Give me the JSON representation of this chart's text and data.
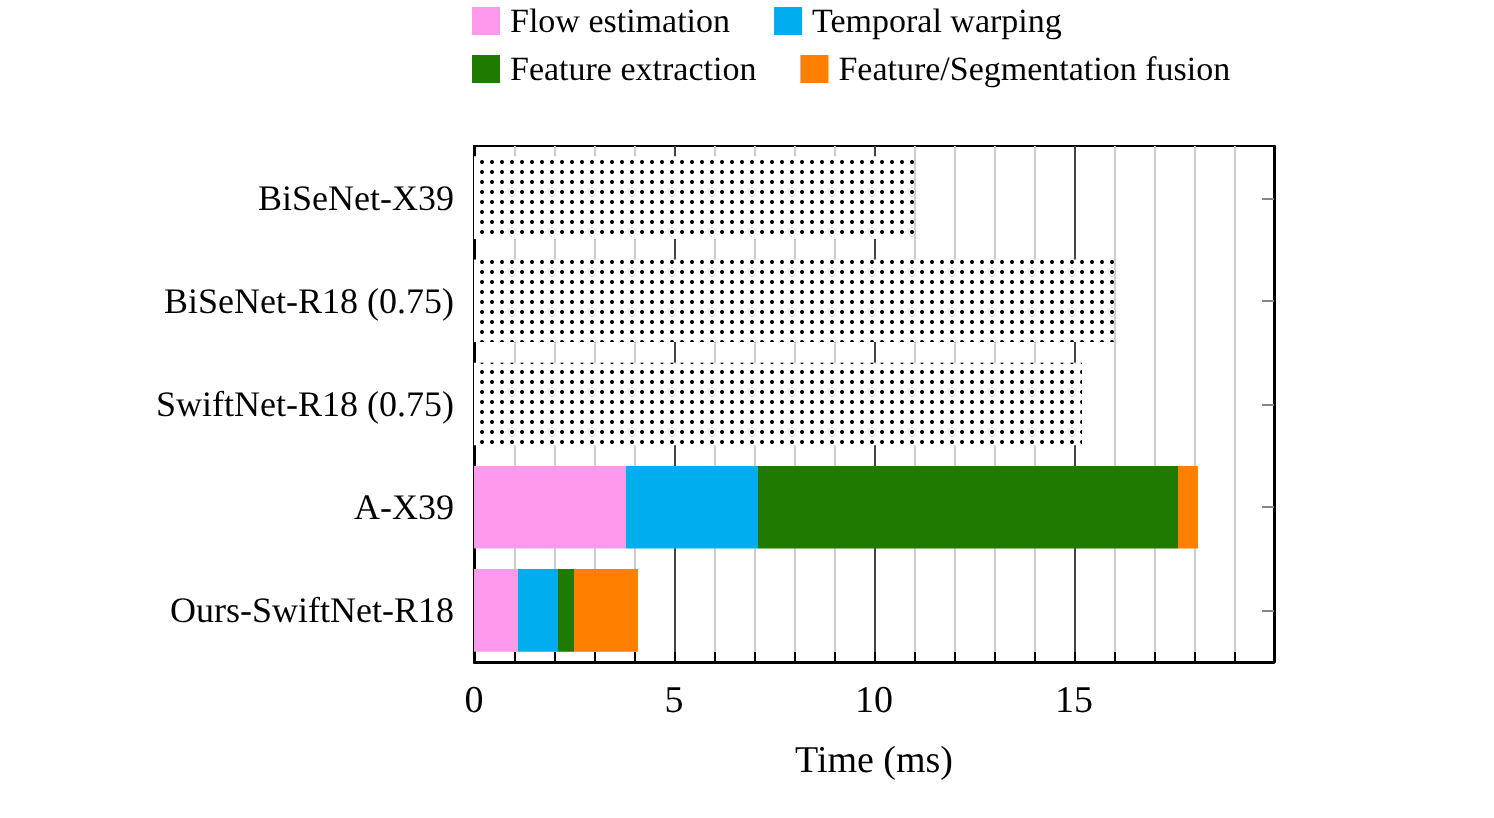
{
  "chart_data": {
    "type": "bar",
    "orientation": "horizontal",
    "stacked": true,
    "xlabel": "Time (ms)",
    "categories": [
      "BiSeNet-X39",
      "BiSeNet-R18 (0.75)",
      "SwiftNet-R18 (0.75)",
      "A-X39",
      "Ours-SwiftNet-R18"
    ],
    "series": [
      {
        "color": "#ffffff",
        "values": [
          11.0,
          16.0,
          15.2,
          null,
          null
        ]
      },
      {
        "name": "Flow estimation",
        "color": "#ff99ee",
        "values": [
          null,
          null,
          null,
          3.8,
          1.1
        ]
      },
      {
        "name": "Temporal warping",
        "color": "#00adef",
        "values": [
          null,
          null,
          null,
          3.3,
          1.0
        ]
      },
      {
        "name": "Feature extraction",
        "color": "#1f7a00",
        "values": [
          null,
          null,
          null,
          10.5,
          0.4
        ]
      },
      {
        "name": "Feature/Segmentation fusion",
        "color": "#ff8000",
        "values": [
          null,
          null,
          null,
          0.5,
          1.6
        ]
      }
    ],
    "xlim": [
      0,
      20
    ],
    "xticks": [
      0,
      {
        "value": 1,
        "label": null
      },
      {
        "value": 2,
        "label": null
      },
      {
        "value": 3,
        "label": null
      },
      {
        "value": 4,
        "label": null
      },
      5,
      {
        "value": 6,
        "label": null
      },
      {
        "value": 7,
        "label": null
      },
      {
        "value": 8,
        "label": null
      },
      {
        "value": 9,
        "label": null
      },
      10,
      {
        "value": 11,
        "label": null
      },
      {
        "value": 12,
        "label": null
      },
      {
        "value": 13,
        "label": null
      },
      {
        "value": 14,
        "label": null
      },
      15,
      {
        "value": 16,
        "label": null
      },
      {
        "value": 17,
        "label": null
      },
      {
        "value": 18,
        "label": null
      },
      {
        "value": 19,
        "label": null
      }
    ],
    "grid": "x",
    "legend": "top"
  }
}
